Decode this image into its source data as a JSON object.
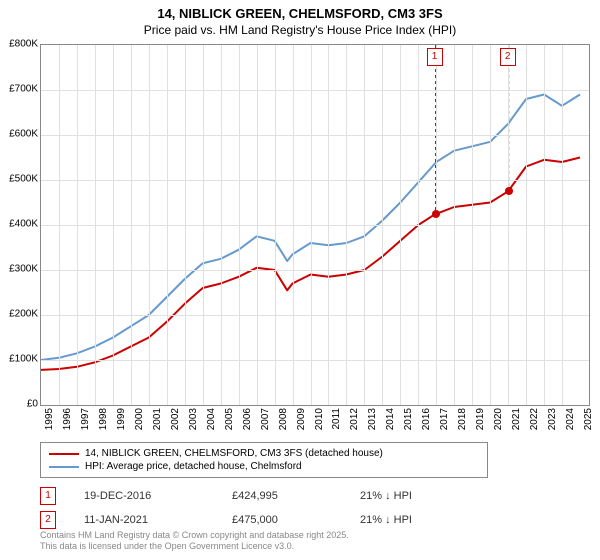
{
  "title_line1": "14, NIBLICK GREEN, CHELMSFORD, CM3 3FS",
  "title_line2": "Price paid vs. HM Land Registry's House Price Index (HPI)",
  "chart": {
    "type": "line",
    "background_color": "#ffffff",
    "grid_color": "#e0e0e0",
    "border_color": "#888888",
    "xlim": [
      1995,
      2025.5
    ],
    "ylim": [
      0,
      800000
    ],
    "ytick_step": 100000,
    "ytick_prefix": "£",
    "ytick_suffix_k": "K",
    "xticks": [
      1995,
      1996,
      1997,
      1998,
      1999,
      2000,
      2001,
      2002,
      2003,
      2004,
      2005,
      2006,
      2007,
      2008,
      2009,
      2010,
      2011,
      2012,
      2013,
      2014,
      2015,
      2016,
      2017,
      2018,
      2019,
      2020,
      2021,
      2022,
      2023,
      2024,
      2025
    ],
    "series": [
      {
        "name": "14, NIBLICK GREEN, CHELMSFORD, CM3 3FS (detached house)",
        "color": "#cc0000",
        "width": 2,
        "data": [
          [
            1995,
            78000
          ],
          [
            1996,
            80000
          ],
          [
            1997,
            85000
          ],
          [
            1998,
            95000
          ],
          [
            1999,
            110000
          ],
          [
            2000,
            130000
          ],
          [
            2001,
            150000
          ],
          [
            2002,
            185000
          ],
          [
            2003,
            225000
          ],
          [
            2004,
            260000
          ],
          [
            2005,
            270000
          ],
          [
            2006,
            285000
          ],
          [
            2007,
            305000
          ],
          [
            2008,
            300000
          ],
          [
            2008.7,
            255000
          ],
          [
            2009,
            270000
          ],
          [
            2010,
            290000
          ],
          [
            2011,
            285000
          ],
          [
            2012,
            290000
          ],
          [
            2013,
            300000
          ],
          [
            2014,
            330000
          ],
          [
            2015,
            365000
          ],
          [
            2016,
            400000
          ],
          [
            2016.96,
            424995
          ],
          [
            2017,
            425000
          ],
          [
            2018,
            440000
          ],
          [
            2019,
            445000
          ],
          [
            2020,
            450000
          ],
          [
            2021,
            475000
          ],
          [
            2022,
            530000
          ],
          [
            2023,
            545000
          ],
          [
            2024,
            540000
          ],
          [
            2025,
            550000
          ]
        ]
      },
      {
        "name": "HPI: Average price, detached house, Chelmsford",
        "color": "#6699cc",
        "width": 2,
        "data": [
          [
            1995,
            100000
          ],
          [
            1996,
            105000
          ],
          [
            1997,
            115000
          ],
          [
            1998,
            130000
          ],
          [
            1999,
            150000
          ],
          [
            2000,
            175000
          ],
          [
            2001,
            200000
          ],
          [
            2002,
            240000
          ],
          [
            2003,
            280000
          ],
          [
            2004,
            315000
          ],
          [
            2005,
            325000
          ],
          [
            2006,
            345000
          ],
          [
            2007,
            375000
          ],
          [
            2008,
            365000
          ],
          [
            2008.7,
            320000
          ],
          [
            2009,
            335000
          ],
          [
            2010,
            360000
          ],
          [
            2011,
            355000
          ],
          [
            2012,
            360000
          ],
          [
            2013,
            375000
          ],
          [
            2014,
            410000
          ],
          [
            2015,
            450000
          ],
          [
            2016,
            495000
          ],
          [
            2017,
            540000
          ],
          [
            2018,
            565000
          ],
          [
            2019,
            575000
          ],
          [
            2020,
            585000
          ],
          [
            2021,
            625000
          ],
          [
            2022,
            680000
          ],
          [
            2023,
            690000
          ],
          [
            2024,
            665000
          ],
          [
            2025,
            690000
          ]
        ]
      }
    ],
    "sale_markers": [
      {
        "n": "1",
        "x": 2016.96,
        "y": 424995,
        "label_y_top": 48
      },
      {
        "n": "2",
        "x": 2021.03,
        "y": 475000,
        "label_y_top": 48
      }
    ],
    "marker_color": "#cc0000"
  },
  "legend": {
    "items": [
      {
        "color": "#cc0000",
        "label": "14, NIBLICK GREEN, CHELMSFORD, CM3 3FS (detached house)"
      },
      {
        "color": "#6699cc",
        "label": "HPI: Average price, detached house, Chelmsford"
      }
    ]
  },
  "sales": [
    {
      "n": "1",
      "date": "19-DEC-2016",
      "price": "£424,995",
      "hpi": "21% ↓ HPI"
    },
    {
      "n": "2",
      "date": "11-JAN-2021",
      "price": "£475,000",
      "hpi": "21% ↓ HPI"
    }
  ],
  "footer_line1": "Contains HM Land Registry data © Crown copyright and database right 2025.",
  "footer_line2": "This data is licensed under the Open Government Licence v3.0."
}
